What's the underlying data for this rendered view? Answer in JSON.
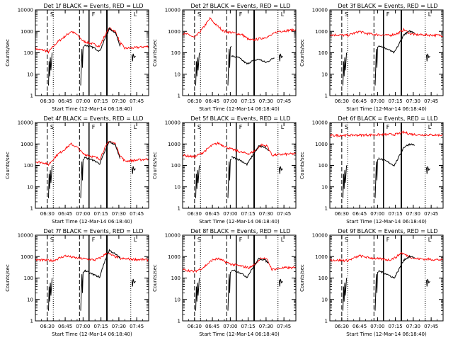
{
  "chart_data": [
    {
      "type": "line",
      "panel": 0,
      "title": "Det 1f BLACK = Events, RED = LLD",
      "xlabel": "Start Time (12-Mar-14 06:18:40)",
      "ylabel": "Counts/sec",
      "yscale": "log",
      "ylim": [
        1,
        10000
      ],
      "xlim": [
        "06:20",
        "07:55"
      ],
      "xticks": [
        "06:30",
        "06:45",
        "07:00",
        "07:15",
        "07:30",
        "07:45"
      ],
      "yticks": [
        "1",
        "10",
        "100",
        "1000",
        "10000"
      ],
      "markers": [
        "S",
        "F",
        "L"
      ],
      "lld_profile": "tall_low_a",
      "events_profile": "high_a"
    },
    {
      "type": "line",
      "panel": 1,
      "title": "Det 2f BLACK = Events, RED = LLD",
      "xlabel": "Start Time (12-Mar-14 06:18:40)",
      "ylabel": "Counts/sec",
      "yscale": "log",
      "ylim": [
        1,
        10000
      ],
      "xlim": [
        "06:20",
        "07:55"
      ],
      "xticks": [
        "06:30",
        "06:45",
        "07:00",
        "07:15",
        "07:30",
        "07:45"
      ],
      "yticks": [
        "1",
        "10",
        "100",
        "1000",
        "10000"
      ],
      "markers": [
        "S",
        "F",
        "L"
      ],
      "lld_profile": "peak_mid",
      "events_profile": "mid_b"
    },
    {
      "type": "line",
      "panel": 2,
      "title": "Det 3f BLACK = Events, RED = LLD",
      "xlabel": "Start Time (12-Mar-14 06:18:40)",
      "ylabel": "Counts/sec",
      "yscale": "log",
      "ylim": [
        1,
        10000
      ],
      "xlim": [
        "06:20",
        "07:55"
      ],
      "xticks": [
        "06:30",
        "06:45",
        "07:00",
        "07:15",
        "07:30",
        "07:45"
      ],
      "yticks": [
        "1",
        "10",
        "100",
        "1000",
        "10000"
      ],
      "markers": [
        "S",
        "F",
        "L"
      ],
      "lld_profile": "flat_mid",
      "events_profile": "low_c"
    },
    {
      "type": "line",
      "panel": 3,
      "title": "Det 4f BLACK = Events, RED = LLD",
      "xlabel": "Start Time (12-Mar-14 06:18:40)",
      "ylabel": "Counts/sec",
      "yscale": "log",
      "ylim": [
        1,
        10000
      ],
      "xlim": [
        "06:20",
        "07:55"
      ],
      "xticks": [
        "06:30",
        "06:45",
        "07:00",
        "07:15",
        "07:30",
        "07:45"
      ],
      "yticks": [
        "1",
        "10",
        "100",
        "1000",
        "10000"
      ],
      "markers": [
        "S",
        "F",
        "L"
      ],
      "lld_profile": "tall_low_a",
      "events_profile": "high_a"
    },
    {
      "type": "line",
      "panel": 4,
      "title": "Det 5f BLACK = Events, RED = LLD",
      "xlabel": "Start Time (12-Mar-14 06:18:40)",
      "ylabel": "Counts/sec",
      "yscale": "log",
      "ylim": [
        1,
        10000
      ],
      "xlim": [
        "06:20",
        "07:55"
      ],
      "xticks": [
        "06:30",
        "06:45",
        "07:00",
        "07:15",
        "07:30",
        "07:45"
      ],
      "yticks": [
        "1",
        "10",
        "100",
        "1000",
        "10000"
      ],
      "markers": [
        "S",
        "F",
        "L"
      ],
      "lld_profile": "mild",
      "events_profile": "mid_d"
    },
    {
      "type": "line",
      "panel": 5,
      "title": "Det 6f BLACK = Events, RED = LLD",
      "xlabel": "Start Time (12-Mar-14 06:18:40)",
      "ylabel": "Counts/sec",
      "yscale": "log",
      "ylim": [
        1,
        10000
      ],
      "xlim": [
        "06:20",
        "07:55"
      ],
      "xticks": [
        "06:30",
        "06:45",
        "07:00",
        "07:15",
        "07:30",
        "07:45"
      ],
      "yticks": [
        "1",
        "10",
        "100",
        "1000",
        "10000"
      ],
      "markers": [
        "S",
        "F",
        "L"
      ],
      "lld_profile": "flat_high",
      "events_profile": "low_c"
    },
    {
      "type": "line",
      "panel": 6,
      "title": "Det 7f BLACK = Events, RED = LLD",
      "xlabel": "Start Time (12-Mar-14 06:18:40)",
      "ylabel": "Counts/sec",
      "yscale": "log",
      "ylim": [
        1,
        10000
      ],
      "xlim": [
        "06:20",
        "07:55"
      ],
      "xticks": [
        "06:30",
        "06:45",
        "07:00",
        "07:15",
        "07:30",
        "07:45"
      ],
      "yticks": [
        "1",
        "10",
        "100",
        "1000",
        "10000"
      ],
      "markers": [
        "S",
        "F",
        "L"
      ],
      "lld_profile": "mid_flat_peak",
      "events_profile": "high_e"
    },
    {
      "type": "line",
      "panel": 7,
      "title": "Det 8f BLACK = Events, RED = LLD",
      "xlabel": "Start Time (12-Mar-14 06:18:40)",
      "ylabel": "Counts/sec",
      "yscale": "log",
      "ylim": [
        1,
        10000
      ],
      "xlim": [
        "06:20",
        "07:55"
      ],
      "xticks": [
        "06:30",
        "06:45",
        "07:00",
        "07:15",
        "07:30",
        "07:45"
      ],
      "yticks": [
        "1",
        "10",
        "100",
        "1000",
        "10000"
      ],
      "markers": [
        "S",
        "F",
        "L"
      ],
      "lld_profile": "mild_low",
      "events_profile": "mid_d"
    },
    {
      "type": "line",
      "panel": 8,
      "title": "Det 9f BLACK = Events, RED = LLD",
      "xlabel": "Start Time (12-Mar-14 06:18:40)",
      "ylabel": "Counts/sec",
      "yscale": "log",
      "ylim": [
        1,
        10000
      ],
      "xlim": [
        "06:20",
        "07:55"
      ],
      "xticks": [
        "06:30",
        "06:45",
        "07:00",
        "07:15",
        "07:30",
        "07:45"
      ],
      "yticks": [
        "1",
        "10",
        "100",
        "1000",
        "10000"
      ],
      "markers": [
        "S",
        "F",
        "L"
      ],
      "lld_profile": "mid_flat_peak",
      "events_profile": "low_c"
    }
  ],
  "colors": {
    "events": "#000000",
    "lld": "#ff0000",
    "axes": "#000000",
    "background": "#ffffff"
  },
  "marker_times": {
    "S_dash": "06:30",
    "S_dot": "06:35",
    "F_dash": "06:57",
    "F_solid": "07:05",
    "L_solid": "07:20",
    "L_dot": "07:40"
  }
}
